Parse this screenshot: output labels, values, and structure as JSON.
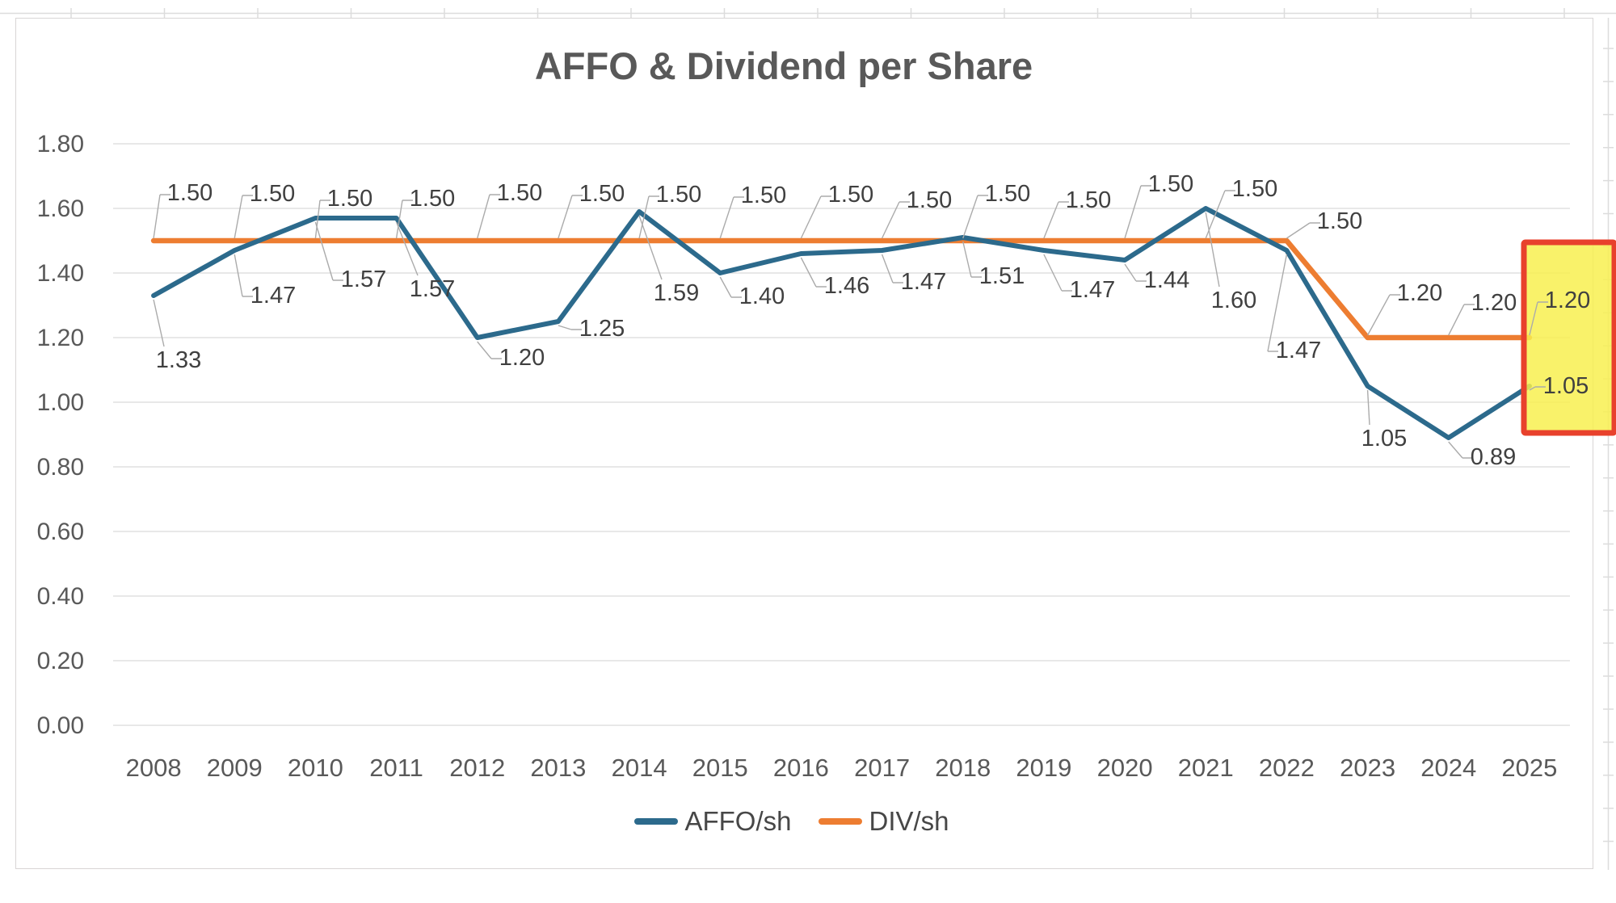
{
  "chart_data": {
    "type": "line",
    "title": "AFFO & Dividend per Share",
    "categories": [
      "2008",
      "2009",
      "2010",
      "2011",
      "2012",
      "2013",
      "2014",
      "2015",
      "2016",
      "2017",
      "2018",
      "2019",
      "2020",
      "2021",
      "2022",
      "2023",
      "2024",
      "2025"
    ],
    "series": [
      {
        "name": "AFFO/sh",
        "color": "#2C6A8C",
        "values": [
          1.33,
          1.47,
          1.57,
          1.57,
          1.2,
          1.25,
          1.59,
          1.4,
          1.46,
          1.47,
          1.51,
          1.47,
          1.44,
          1.6,
          1.47,
          1.05,
          0.89,
          1.05
        ],
        "labels": [
          "1.33",
          "1.47",
          "1.57",
          "1.57",
          "1.20",
          "1.25",
          "1.59",
          "1.40",
          "1.46",
          "1.47",
          "1.51",
          "1.47",
          "1.44",
          "1.60",
          "1.47",
          "1.05",
          "0.89",
          "1.05"
        ]
      },
      {
        "name": "DIV/sh",
        "color": "#ED7D31",
        "values": [
          1.5,
          1.5,
          1.5,
          1.5,
          1.5,
          1.5,
          1.5,
          1.5,
          1.5,
          1.5,
          1.5,
          1.5,
          1.5,
          1.5,
          1.5,
          1.2,
          1.2,
          1.2
        ],
        "labels": [
          "1.50",
          "1.50",
          "1.50",
          "1.50",
          "1.50",
          "1.50",
          "1.50",
          "1.50",
          "1.50",
          "1.50",
          "1.50",
          "1.50",
          "1.50",
          "1.50",
          "1.50",
          "1.20",
          "1.20",
          "1.20"
        ]
      }
    ],
    "ylim": [
      0,
      1.8
    ],
    "y_tick_step": 0.2,
    "y_tick_labels": [
      "0.00",
      "0.20",
      "0.40",
      "0.60",
      "0.80",
      "1.00",
      "1.20",
      "1.40",
      "1.60",
      "1.80"
    ],
    "grid": true,
    "legend_position": "bottom",
    "colors": {
      "gridline": "#d9d9d9",
      "axis_text": "#595959",
      "data_label_text": "#404040",
      "leader_line": "#ababab",
      "title_text": "#595959",
      "sheet_line": "#dcdcdc"
    },
    "highlight": {
      "target_year": "2025",
      "box_labels": [
        "1.20",
        "1.05"
      ],
      "fill": "#F8EF4E",
      "fill_opacity": 0.84,
      "border_color": "#E8412C"
    }
  }
}
